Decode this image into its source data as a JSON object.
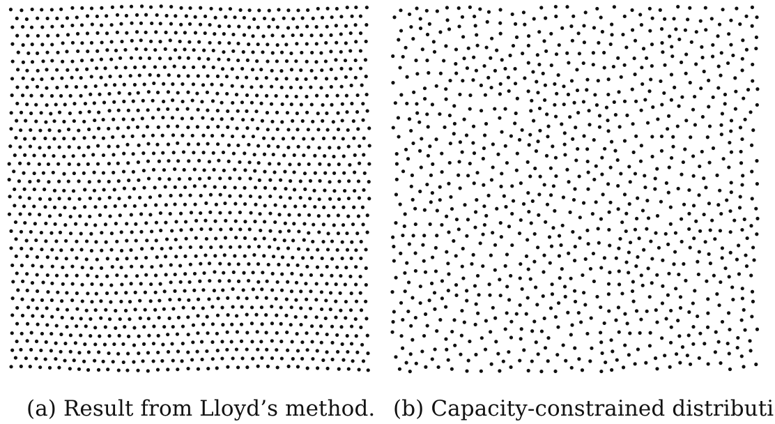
{
  "figure": {
    "panel_a": {
      "label": "(a)",
      "caption": "Result from Lloyd’s method.",
      "dot_color": "#111111"
    },
    "panel_b": {
      "label": "(b)",
      "caption": "Capacity-constrained distribution.",
      "dot_color": "#111111"
    }
  }
}
